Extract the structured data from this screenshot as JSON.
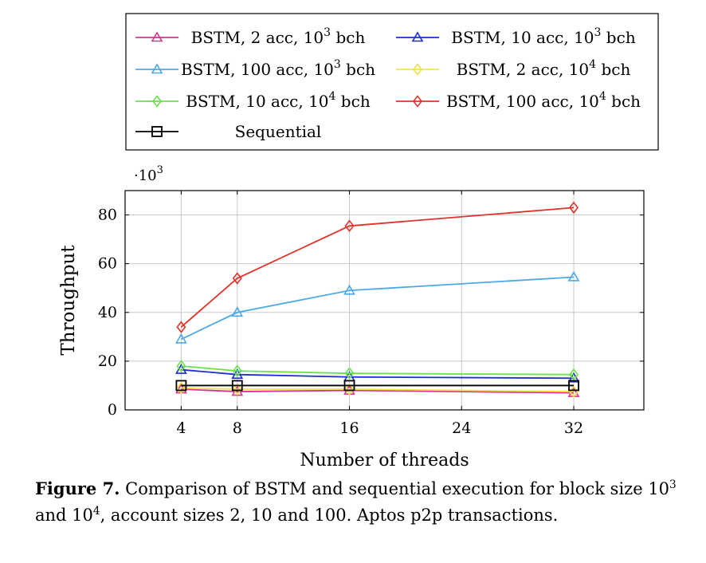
{
  "chart_data": {
    "type": "line",
    "x": [
      4,
      8,
      16,
      32
    ],
    "xlabel": "Number of threads",
    "ylabel": "Throughput",
    "y_multiplier": "·10^3",
    "xticks": [
      "4",
      "8",
      "16",
      "24",
      "32"
    ],
    "yticks": [
      "0",
      "20",
      "40",
      "60",
      "80"
    ],
    "xlim": [
      0,
      37
    ],
    "ylim": [
      0,
      90
    ],
    "grid": true,
    "legend_position": "top",
    "series": [
      {
        "name": "BSTM, 2 acc, 10^3 bch",
        "color": "#d6368f",
        "marker": "triangle",
        "values": [
          8.5,
          7.5,
          8,
          7
        ]
      },
      {
        "name": "BSTM, 10 acc, 10^3 bch",
        "color": "#1b2dd6",
        "marker": "triangle",
        "values": [
          16.5,
          14.5,
          13.5,
          13
        ]
      },
      {
        "name": "BSTM, 100 acc, 10^3 bch",
        "color": "#4da9e6",
        "marker": "triangle",
        "values": [
          29,
          40,
          49,
          54.5
        ]
      },
      {
        "name": "BSTM, 2 acc, 10^4 bch",
        "color": "#f0e442",
        "marker": "diamond",
        "values": [
          9,
          8.5,
          8.5,
          7.5
        ]
      },
      {
        "name": "BSTM, 10 acc, 10^4 bch",
        "color": "#6be14c",
        "marker": "diamond",
        "values": [
          18,
          16,
          15,
          14.5
        ]
      },
      {
        "name": "BSTM, 100 acc, 10^4 bch",
        "color": "#e0332a",
        "marker": "diamond",
        "values": [
          34,
          54,
          75.5,
          83
        ]
      },
      {
        "name": "Sequential",
        "color": "#000000",
        "marker": "square",
        "values": [
          10,
          10,
          10,
          10
        ]
      }
    ]
  },
  "caption": {
    "label": "Figure 7.",
    "text_a": " Comparison of BSTM and sequential execution for block size 10",
    "sup_a": "3",
    "text_b": " and 10",
    "sup_b": "4",
    "text_c": ", account sizes 2, 10 and 100. Aptos p2p transactions."
  }
}
